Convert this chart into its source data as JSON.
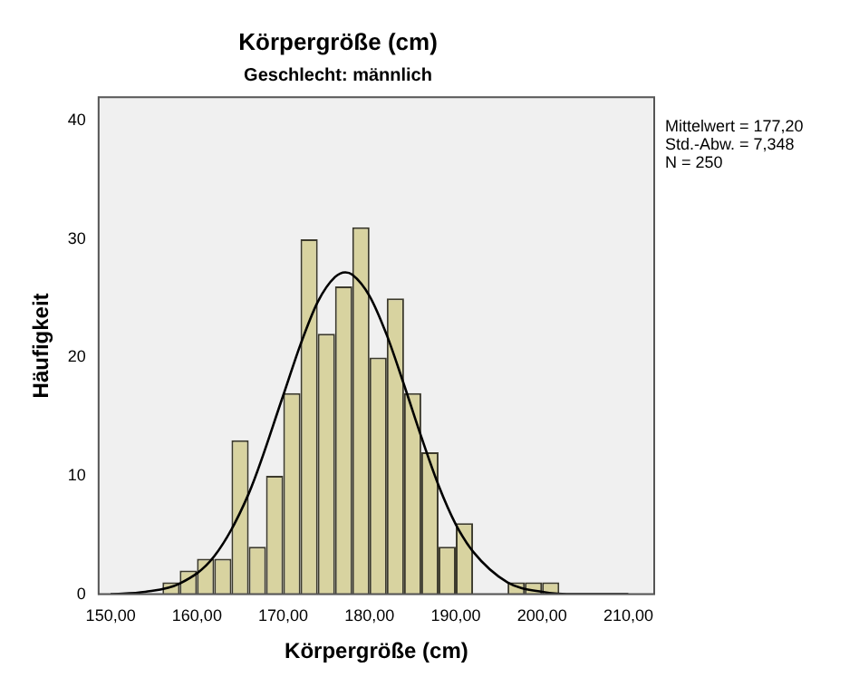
{
  "chart_data": {
    "type": "histogram",
    "title": "Körpergröße (cm)",
    "subtitle": "Geschlecht: männlich",
    "xlabel": "Körpergröße (cm)",
    "ylabel": "Häufigkeit",
    "bins": [
      156,
      158,
      160,
      162,
      164,
      166,
      168,
      170,
      172,
      174,
      176,
      178,
      180,
      182,
      184,
      186,
      188,
      190,
      192,
      194,
      196,
      198,
      200,
      202
    ],
    "values": [
      1,
      2,
      3,
      3,
      13,
      4,
      10,
      17,
      30,
      22,
      26,
      31,
      20,
      25,
      17,
      12,
      4,
      6,
      0,
      0,
      1,
      1,
      1
    ],
    "color": "#d8d3a0",
    "series": [
      {
        "type": "line",
        "color": "#000000",
        "x": [
          150,
          154,
          158,
          162,
          166,
          170,
          172,
          174,
          176,
          177.2,
          178,
          180,
          182,
          184,
          186,
          188,
          190,
          192,
          196,
          200,
          204,
          210
        ],
        "values": [
          0,
          0.2,
          0.9,
          3.2,
          8.5,
          16.8,
          21.1,
          24.7,
          26.8,
          27.2,
          27,
          25.2,
          21.9,
          17.7,
          13.3,
          9.2,
          5.9,
          3.6,
          1,
          0.2,
          0,
          0
        ]
      }
    ],
    "marker": "none",
    "xlim": [
      148.6,
      213
    ],
    "xticks": [
      {
        "value": 150,
        "label": "150,00"
      },
      {
        "value": 160,
        "label": "160,00"
      },
      {
        "value": 170,
        "label": "170,00"
      },
      {
        "value": 180,
        "label": "180,00"
      },
      {
        "value": 190,
        "label": "190,00"
      },
      {
        "value": 200,
        "label": "200,00"
      },
      {
        "value": 210,
        "label": "210,00"
      }
    ],
    "ylim": [
      0,
      42
    ],
    "yticks": [
      0,
      10,
      20,
      30,
      40
    ],
    "annotations": [
      "Mittelwert = 177,20",
      "Std.-Abw. = 7,348",
      "N = 250"
    ]
  }
}
